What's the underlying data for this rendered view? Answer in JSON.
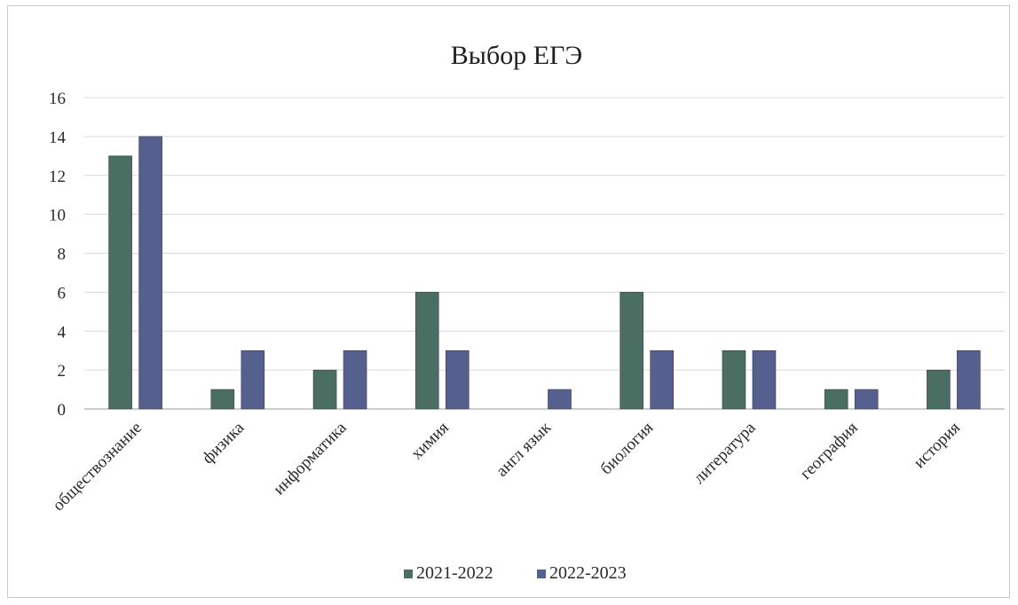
{
  "chart_data": {
    "type": "bar",
    "title": "Выбор ЕГЭ",
    "xlabel": "",
    "ylabel": "",
    "ylim": [
      0,
      16
    ],
    "yticks": [
      0,
      2,
      4,
      6,
      8,
      10,
      12,
      14,
      16
    ],
    "grid": true,
    "legend_position": "bottom",
    "categories": [
      "обществознание",
      "физика",
      "информатика",
      "химия",
      "англ язык",
      "биология",
      "литература",
      "география",
      "история"
    ],
    "series": [
      {
        "name": "2021-2022",
        "color": "#4a6f62",
        "values": [
          13,
          1,
          2,
          6,
          null,
          6,
          3,
          1,
          2
        ]
      },
      {
        "name": "2022-2023",
        "color": "#56608f",
        "values": [
          14,
          3,
          3,
          3,
          1,
          3,
          3,
          1,
          3
        ]
      }
    ]
  }
}
